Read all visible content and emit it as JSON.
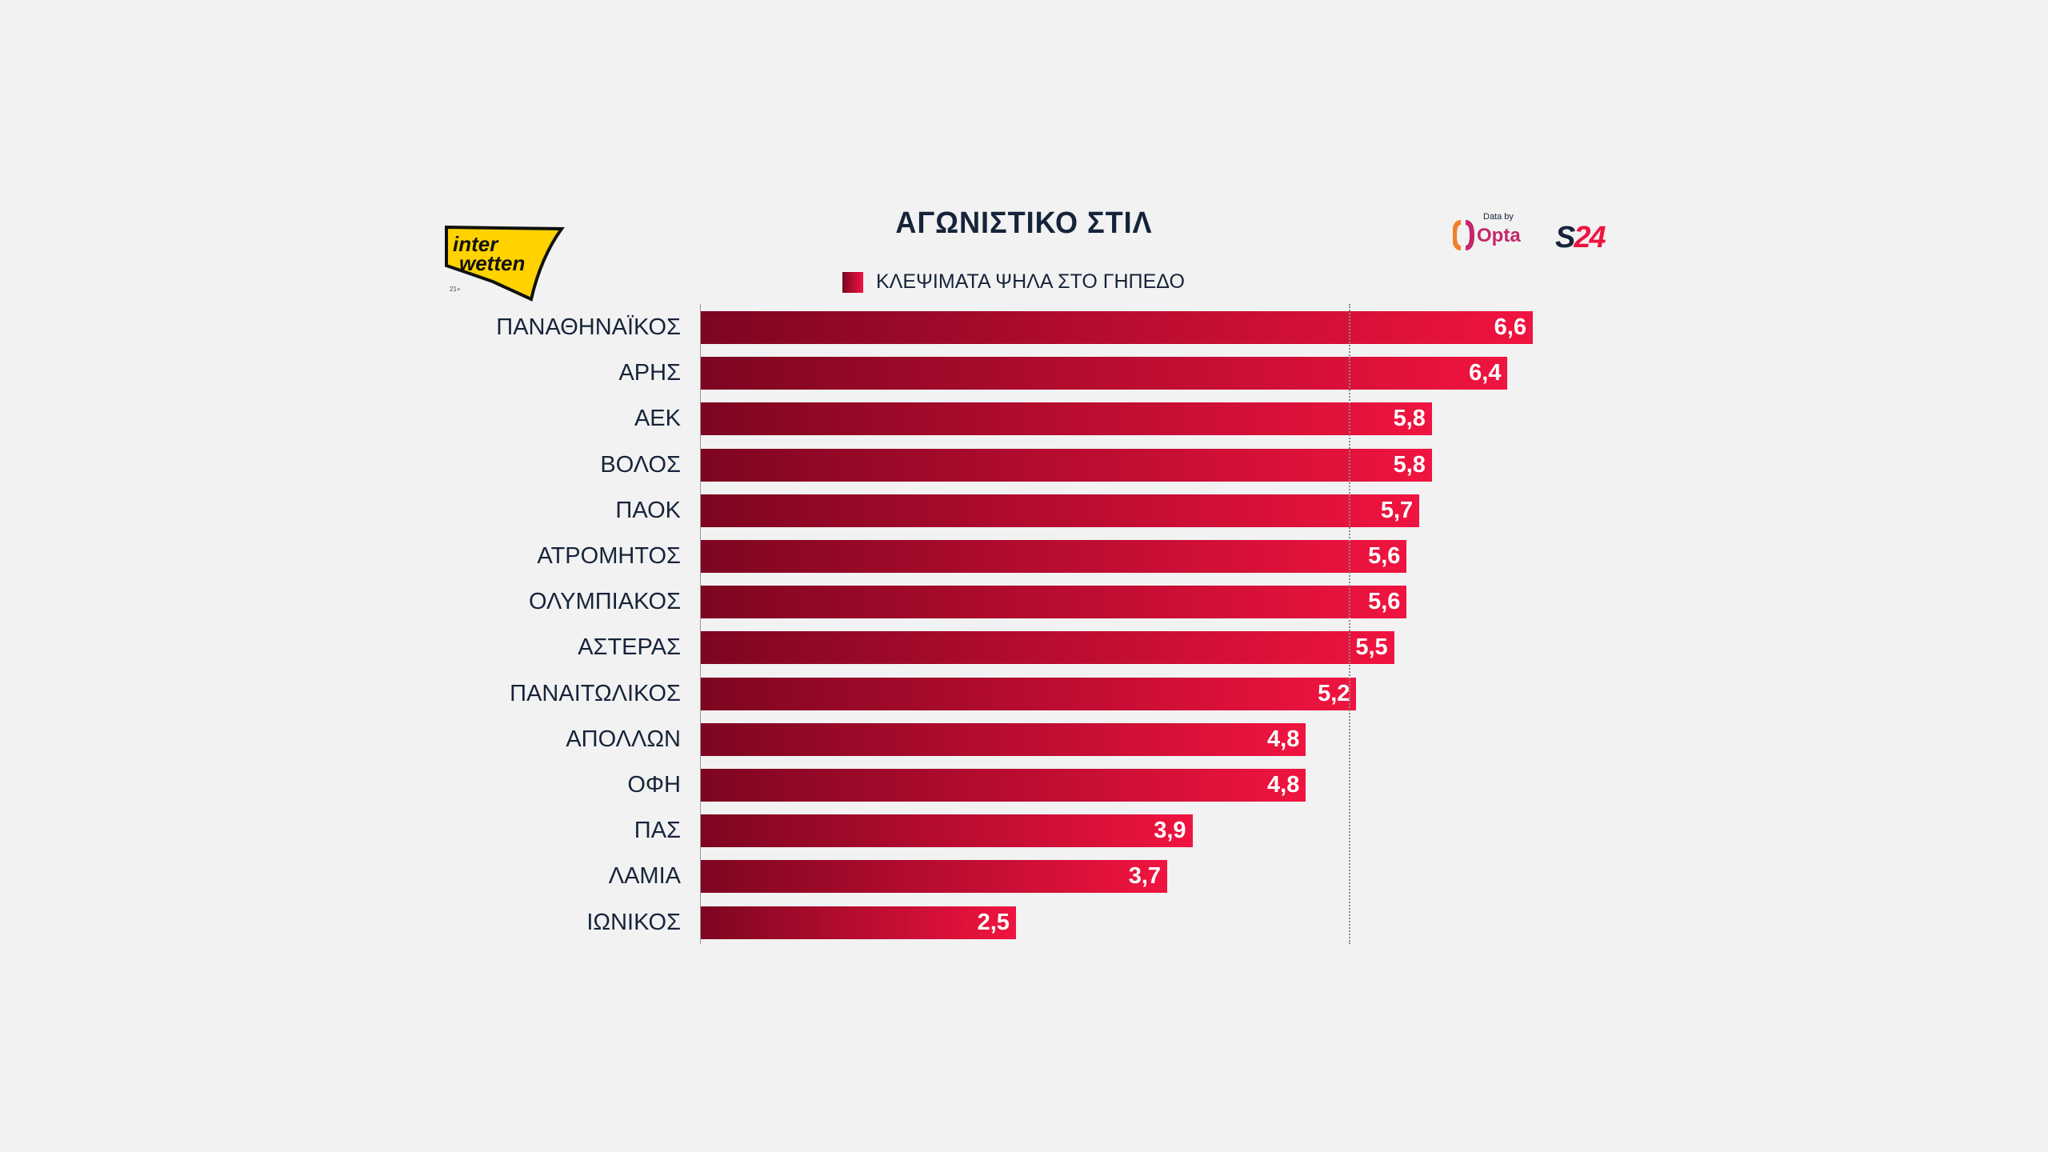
{
  "chart_data": {
    "type": "bar",
    "orientation": "horizontal",
    "title": "ΑΓΩΝΙΣΤΙΚΟ ΣΤΙΛ",
    "legend": [
      "ΚΛΕΨΙΜΑΤΑ ΨΗΛΑ ΣΤΟ ΓΗΠΕΔΟ"
    ],
    "legend_position": "top-center",
    "categories": [
      "ΠΑΝΑΘΗΝΑΪΚΟΣ",
      "ΑΡΗΣ",
      "ΑΕΚ",
      "ΒΟΛΟΣ",
      "ΠΑΟΚ",
      "ΑΤΡΟΜΗΤΟΣ",
      "ΟΛΥΜΠΙΑΚΟΣ",
      "ΑΣΤΕΡΑΣ",
      "ΠΑΝΑΙΤΩΛΙΚΟΣ",
      "ΑΠΟΛΛΩΝ",
      "ΟΦΗ",
      "ΠΑΣ",
      "ΛΑΜΙΑ",
      "ΙΩΝΙΚΟΣ"
    ],
    "values": [
      6.6,
      6.4,
      5.8,
      5.8,
      5.7,
      5.6,
      5.6,
      5.5,
      5.2,
      4.8,
      4.8,
      3.9,
      3.7,
      2.5
    ],
    "value_labels": [
      "6,6",
      "6,4",
      "5,8",
      "5,8",
      "5,7",
      "5,6",
      "5,6",
      "5,5",
      "5,2",
      "4,8",
      "4,8",
      "3,9",
      "3,7",
      "2,5"
    ],
    "reference_line": 5.14,
    "xlim": [
      0,
      6.6
    ],
    "colors": {
      "start": "#7d0620",
      "end": "#f01440"
    }
  },
  "logos": {
    "interwetten": "inter wetten",
    "age": "21+",
    "data_by": "Data by",
    "opta": "Opta",
    "s24_s": "S",
    "s24_n": "24"
  }
}
